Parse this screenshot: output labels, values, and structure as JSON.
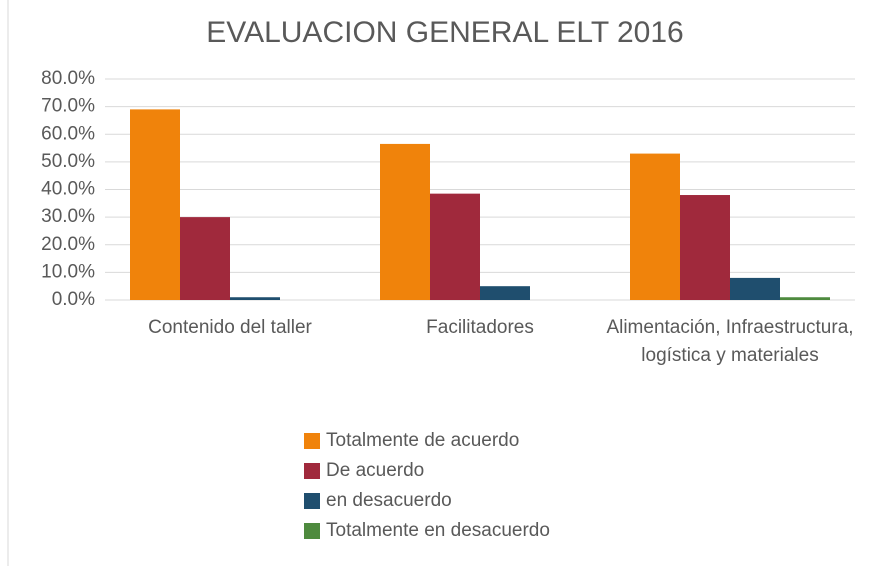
{
  "chart_data": {
    "type": "bar",
    "title": "EVALUACION GENERAL ELT 2016",
    "categories": [
      "Contenido del taller",
      "Facilitadores",
      "Alimentación, Infraestructura, logística y materiales"
    ],
    "series": [
      {
        "name": "Totalmente de acuerdo",
        "color": "#f0830b",
        "values": [
          69,
          56.5,
          53
        ]
      },
      {
        "name": "De acuerdo",
        "color": "#a0293c",
        "values": [
          30,
          38.5,
          38
        ]
      },
      {
        "name": "en desacuerdo",
        "color": "#1f4e6e",
        "values": [
          1,
          5,
          8
        ]
      },
      {
        "name": "Totalmente en desacuerdo",
        "color": "#4e8a3e",
        "values": [
          0,
          0,
          1
        ]
      }
    ],
    "ylim": [
      0,
      80
    ],
    "yticks": [
      {
        "value": 0,
        "label": "0.0%"
      },
      {
        "value": 10,
        "label": "10.0%"
      },
      {
        "value": 20,
        "label": "20.0%"
      },
      {
        "value": 30,
        "label": "30.0%"
      },
      {
        "value": 40,
        "label": "40.0%"
      },
      {
        "value": 50,
        "label": "50.0%"
      },
      {
        "value": 60,
        "label": "60.0%"
      },
      {
        "value": 70,
        "label": "70.0%"
      },
      {
        "value": 80,
        "label": "80.0%"
      }
    ],
    "grid": true,
    "legend": "bottom"
  }
}
